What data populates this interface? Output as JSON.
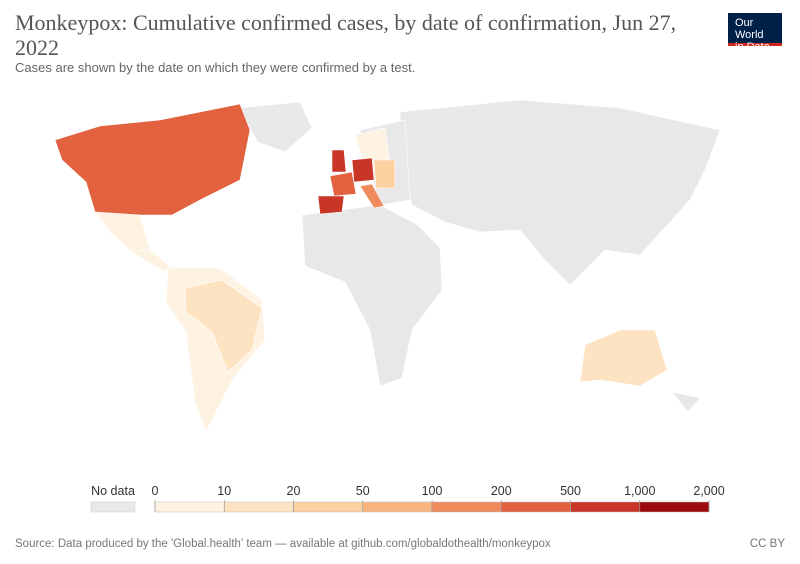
{
  "header": {
    "title": "Monkeypox: Cumulative confirmed cases, by date of confirmation, Jun 27, 2022",
    "subtitle": "Cases are shown by the date on which they were confirmed by a test."
  },
  "logo": {
    "line1": "Our World",
    "line2": "in Data"
  },
  "legend": {
    "no_data": "No data",
    "no_data_color": "#e8e8e8",
    "ticks": [
      0,
      10,
      20,
      50,
      100,
      200,
      500,
      {
        "value": 1000,
        "label": "1,000"
      },
      {
        "value": 2000,
        "label": "2,000"
      }
    ],
    "colors": [
      "#fef2e2",
      "#fde3c2",
      "#fcd19f",
      "#f9b37e",
      "#f08b5c",
      "#e2613f",
      "#c93527",
      "#9c0c0c"
    ]
  },
  "footer": {
    "source": "Source: Data produced by the 'Global.health' team — available at github.com/globaldothealth/monkeypox",
    "license": "CC BY"
  }
}
